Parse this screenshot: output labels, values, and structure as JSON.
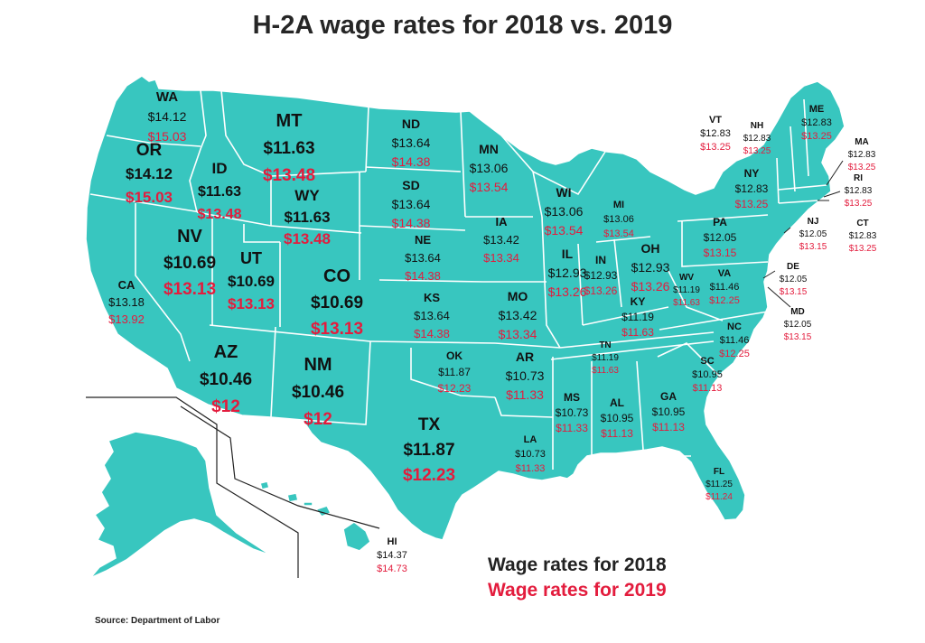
{
  "title": "H-2A wage rates for 2018 vs. 2019",
  "legend": {
    "rate_2018": "Wage rates for 2018",
    "rate_2019": "Wage rates for 2019"
  },
  "source": "Source: Department of Labor",
  "colors": {
    "land": "#38c6bf",
    "border": "#ffffff",
    "text_2018": "#111111",
    "text_2019": "#e31c3d"
  },
  "states": [
    {
      "abbr": "WA",
      "r2018": "$14.12",
      "r2019": "$15.03"
    },
    {
      "abbr": "OR",
      "r2018": "$14.12",
      "r2019": "$15.03"
    },
    {
      "abbr": "CA",
      "r2018": "$13.18",
      "r2019": "$13.92"
    },
    {
      "abbr": "ID",
      "r2018": "$11.63",
      "r2019": "$13.48"
    },
    {
      "abbr": "MT",
      "r2018": "$11.63",
      "r2019": "$13.48"
    },
    {
      "abbr": "WY",
      "r2018": "$11.63",
      "r2019": "$13.48"
    },
    {
      "abbr": "NV",
      "r2018": "$10.69",
      "r2019": "$13.13"
    },
    {
      "abbr": "UT",
      "r2018": "$10.69",
      "r2019": "$13.13"
    },
    {
      "abbr": "CO",
      "r2018": "$10.69",
      "r2019": "$13.13"
    },
    {
      "abbr": "AZ",
      "r2018": "$10.46",
      "r2019": "$12"
    },
    {
      "abbr": "NM",
      "r2018": "$10.46",
      "r2019": "$12"
    },
    {
      "abbr": "ND",
      "r2018": "$13.64",
      "r2019": "$14.38"
    },
    {
      "abbr": "SD",
      "r2018": "$13.64",
      "r2019": "$14.38"
    },
    {
      "abbr": "NE",
      "r2018": "$13.64",
      "r2019": "$14.38"
    },
    {
      "abbr": "KS",
      "r2018": "$13.64",
      "r2019": "$14.38"
    },
    {
      "abbr": "OK",
      "r2018": "$11.87",
      "r2019": "$12.23"
    },
    {
      "abbr": "TX",
      "r2018": "$11.87",
      "r2019": "$12.23"
    },
    {
      "abbr": "MN",
      "r2018": "$13.06",
      "r2019": "$13.54"
    },
    {
      "abbr": "WI",
      "r2018": "$13.06",
      "r2019": "$13.54"
    },
    {
      "abbr": "MI",
      "r2018": "$13.06",
      "r2019": "$13.54"
    },
    {
      "abbr": "IA",
      "r2018": "$13.42",
      "r2019": "$13.34"
    },
    {
      "abbr": "MO",
      "r2018": "$13.42",
      "r2019": "$13.34"
    },
    {
      "abbr": "AR",
      "r2018": "$10.73",
      "r2019": "$11.33"
    },
    {
      "abbr": "LA",
      "r2018": "$10.73",
      "r2019": "$11.33"
    },
    {
      "abbr": "MS",
      "r2018": "$10.73",
      "r2019": "$11.33"
    },
    {
      "abbr": "IL",
      "r2018": "$12.93",
      "r2019": "$13.26"
    },
    {
      "abbr": "IN",
      "r2018": "$12.93",
      "r2019": "$13.26"
    },
    {
      "abbr": "OH",
      "r2018": "$12.93",
      "r2019": "$13.26"
    },
    {
      "abbr": "KY",
      "r2018": "$11.19",
      "r2019": "$11.63"
    },
    {
      "abbr": "TN",
      "r2018": "$11.19",
      "r2019": "$11.63"
    },
    {
      "abbr": "WV",
      "r2018": "$11.19",
      "r2019": "$11.63"
    },
    {
      "abbr": "AL",
      "r2018": "$10.95",
      "r2019": "$11.13"
    },
    {
      "abbr": "GA",
      "r2018": "$10.95",
      "r2019": "$11.13"
    },
    {
      "abbr": "SC",
      "r2018": "$10.95",
      "r2019": "$11.13"
    },
    {
      "abbr": "FL",
      "r2018": "$11.25",
      "r2019": "$11.24"
    },
    {
      "abbr": "NC",
      "r2018": "$11.46",
      "r2019": "$12.25"
    },
    {
      "abbr": "VA",
      "r2018": "$11.46",
      "r2019": "$12.25"
    },
    {
      "abbr": "PA",
      "r2018": "$12.05",
      "r2019": "$13.15"
    },
    {
      "abbr": "NJ",
      "r2018": "$12.05",
      "r2019": "$13.15"
    },
    {
      "abbr": "DE",
      "r2018": "$12.05",
      "r2019": "$13.15"
    },
    {
      "abbr": "MD",
      "r2018": "$12.05",
      "r2019": "$13.15"
    },
    {
      "abbr": "NY",
      "r2018": "$12.83",
      "r2019": "$13.25"
    },
    {
      "abbr": "VT",
      "r2018": "$12.83",
      "r2019": "$13.25"
    },
    {
      "abbr": "NH",
      "r2018": "$12.83",
      "r2019": "$13.25"
    },
    {
      "abbr": "ME",
      "r2018": "$12.83",
      "r2019": "$13.25"
    },
    {
      "abbr": "MA",
      "r2018": "$12.83",
      "r2019": "$13.25"
    },
    {
      "abbr": "RI",
      "r2018": "$12.83",
      "r2019": "$13.25"
    },
    {
      "abbr": "CT",
      "r2018": "$12.83",
      "r2019": "$13.25"
    },
    {
      "abbr": "HI",
      "r2018": "$14.37",
      "r2019": "$14.73"
    }
  ]
}
